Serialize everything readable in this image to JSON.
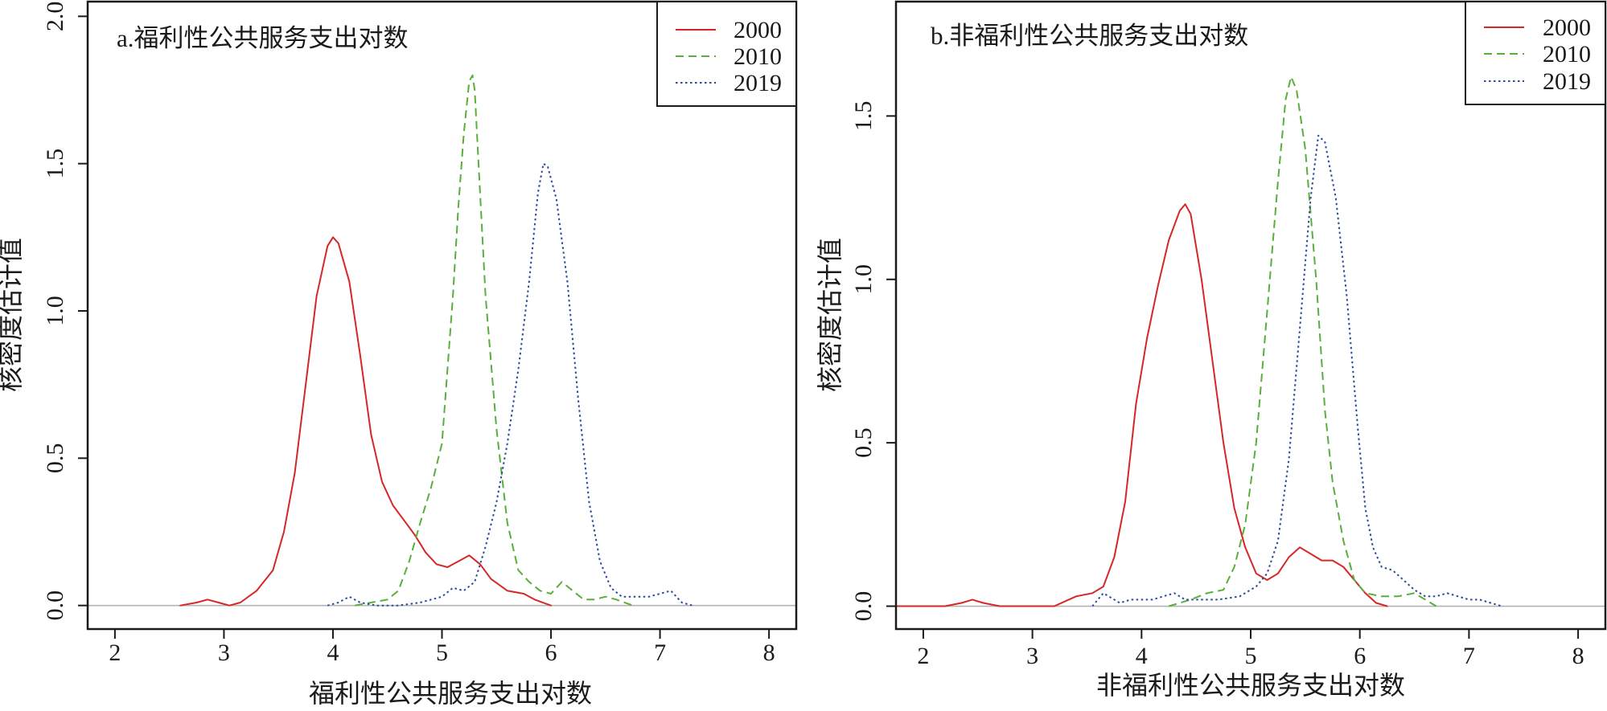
{
  "chart_data": [
    {
      "type": "line",
      "title": "a.福利性公共服务支出对数",
      "xlabel": "福利性公共服务支出对数",
      "ylabel": "核密度估计值",
      "xlim": [
        1.75,
        8.25
      ],
      "ylim": [
        -0.08,
        2.05
      ],
      "x_ticks": [
        "2",
        "3",
        "4",
        "5",
        "6",
        "7",
        "8"
      ],
      "y_ticks": [
        "0.0",
        "0.5",
        "1.0",
        "1.5",
        "2.0"
      ],
      "baseline": 0,
      "legend_position": "top-right",
      "series": [
        {
          "name": "2000",
          "color": "#d62728",
          "dash": "solid",
          "points": [
            [
              2.6,
              0.0
            ],
            [
              2.75,
              0.01
            ],
            [
              2.85,
              0.02
            ],
            [
              2.95,
              0.01
            ],
            [
              3.05,
              0.0
            ],
            [
              3.15,
              0.01
            ],
            [
              3.3,
              0.05
            ],
            [
              3.45,
              0.12
            ],
            [
              3.55,
              0.25
            ],
            [
              3.65,
              0.45
            ],
            [
              3.75,
              0.75
            ],
            [
              3.85,
              1.05
            ],
            [
              3.95,
              1.22
            ],
            [
              4.0,
              1.25
            ],
            [
              4.05,
              1.23
            ],
            [
              4.15,
              1.1
            ],
            [
              4.25,
              0.85
            ],
            [
              4.35,
              0.58
            ],
            [
              4.45,
              0.42
            ],
            [
              4.55,
              0.34
            ],
            [
              4.65,
              0.29
            ],
            [
              4.75,
              0.24
            ],
            [
              4.85,
              0.18
            ],
            [
              4.95,
              0.14
            ],
            [
              5.05,
              0.13
            ],
            [
              5.15,
              0.15
            ],
            [
              5.25,
              0.17
            ],
            [
              5.35,
              0.14
            ],
            [
              5.45,
              0.09
            ],
            [
              5.6,
              0.05
            ],
            [
              5.75,
              0.04
            ],
            [
              5.85,
              0.02
            ],
            [
              6.0,
              0.0
            ]
          ]
        },
        {
          "name": "2010",
          "color": "#5aae3a",
          "dash": "dashed",
          "points": [
            [
              4.2,
              0.0
            ],
            [
              4.35,
              0.01
            ],
            [
              4.5,
              0.02
            ],
            [
              4.6,
              0.05
            ],
            [
              4.7,
              0.15
            ],
            [
              4.8,
              0.28
            ],
            [
              4.9,
              0.4
            ],
            [
              5.0,
              0.55
            ],
            [
              5.05,
              0.8
            ],
            [
              5.1,
              1.05
            ],
            [
              5.15,
              1.35
            ],
            [
              5.2,
              1.6
            ],
            [
              5.25,
              1.78
            ],
            [
              5.28,
              1.8
            ],
            [
              5.3,
              1.75
            ],
            [
              5.35,
              1.4
            ],
            [
              5.4,
              1.05
            ],
            [
              5.5,
              0.6
            ],
            [
              5.6,
              0.28
            ],
            [
              5.7,
              0.12
            ],
            [
              5.8,
              0.08
            ],
            [
              5.9,
              0.05
            ],
            [
              6.0,
              0.04
            ],
            [
              6.1,
              0.08
            ],
            [
              6.2,
              0.05
            ],
            [
              6.3,
              0.02
            ],
            [
              6.4,
              0.02
            ],
            [
              6.5,
              0.03
            ],
            [
              6.6,
              0.02
            ],
            [
              6.75,
              0.0
            ]
          ]
        },
        {
          "name": "2019",
          "color": "#2b4a9b",
          "dash": "dotted",
          "points": [
            [
              3.95,
              0.0
            ],
            [
              4.05,
              0.01
            ],
            [
              4.15,
              0.03
            ],
            [
              4.25,
              0.01
            ],
            [
              4.4,
              0.0
            ],
            [
              4.6,
              0.0
            ],
            [
              4.8,
              0.01
            ],
            [
              5.0,
              0.03
            ],
            [
              5.1,
              0.06
            ],
            [
              5.2,
              0.05
            ],
            [
              5.3,
              0.08
            ],
            [
              5.4,
              0.2
            ],
            [
              5.5,
              0.35
            ],
            [
              5.6,
              0.55
            ],
            [
              5.7,
              0.8
            ],
            [
              5.8,
              1.1
            ],
            [
              5.88,
              1.4
            ],
            [
              5.93,
              1.5
            ],
            [
              5.97,
              1.49
            ],
            [
              6.05,
              1.38
            ],
            [
              6.15,
              1.1
            ],
            [
              6.25,
              0.7
            ],
            [
              6.35,
              0.35
            ],
            [
              6.45,
              0.15
            ],
            [
              6.55,
              0.06
            ],
            [
              6.65,
              0.03
            ],
            [
              6.8,
              0.03
            ],
            [
              6.9,
              0.03
            ],
            [
              7.0,
              0.04
            ],
            [
              7.1,
              0.05
            ],
            [
              7.2,
              0.01
            ],
            [
              7.3,
              0.0
            ]
          ]
        }
      ]
    },
    {
      "type": "line",
      "title": "b.非福利性公共服务支出对数",
      "xlabel": "非福利性公共服务支出对数",
      "ylabel": "核密度估计值",
      "xlim": [
        1.75,
        8.25
      ],
      "ylim": [
        -0.07,
        1.85
      ],
      "x_ticks": [
        "2",
        "3",
        "4",
        "5",
        "6",
        "7",
        "8"
      ],
      "y_ticks": [
        "0.0",
        "0.5",
        "1.0",
        "1.5"
      ],
      "baseline": 0,
      "legend_position": "top-right",
      "series": [
        {
          "name": "2000",
          "color": "#d62728",
          "dash": "solid",
          "points": [
            [
              1.75,
              0.0
            ],
            [
              2.2,
              0.0
            ],
            [
              2.35,
              0.01
            ],
            [
              2.45,
              0.02
            ],
            [
              2.55,
              0.01
            ],
            [
              2.7,
              0.0
            ],
            [
              3.0,
              0.0
            ],
            [
              3.2,
              0.0
            ],
            [
              3.4,
              0.03
            ],
            [
              3.55,
              0.04
            ],
            [
              3.65,
              0.06
            ],
            [
              3.75,
              0.15
            ],
            [
              3.85,
              0.32
            ],
            [
              3.95,
              0.62
            ],
            [
              4.05,
              0.82
            ],
            [
              4.15,
              0.98
            ],
            [
              4.25,
              1.12
            ],
            [
              4.35,
              1.21
            ],
            [
              4.4,
              1.23
            ],
            [
              4.45,
              1.2
            ],
            [
              4.55,
              1.0
            ],
            [
              4.65,
              0.75
            ],
            [
              4.75,
              0.5
            ],
            [
              4.85,
              0.3
            ],
            [
              4.95,
              0.18
            ],
            [
              5.05,
              0.1
            ],
            [
              5.15,
              0.08
            ],
            [
              5.25,
              0.1
            ],
            [
              5.35,
              0.15
            ],
            [
              5.45,
              0.18
            ],
            [
              5.55,
              0.16
            ],
            [
              5.65,
              0.14
            ],
            [
              5.75,
              0.14
            ],
            [
              5.85,
              0.12
            ],
            [
              5.95,
              0.08
            ],
            [
              6.05,
              0.04
            ],
            [
              6.15,
              0.01
            ],
            [
              6.25,
              0.0
            ]
          ]
        },
        {
          "name": "2010",
          "color": "#5aae3a",
          "dash": "dashed",
          "points": [
            [
              4.25,
              0.0
            ],
            [
              4.45,
              0.02
            ],
            [
              4.6,
              0.04
            ],
            [
              4.75,
              0.05
            ],
            [
              4.85,
              0.12
            ],
            [
              4.95,
              0.25
            ],
            [
              5.05,
              0.5
            ],
            [
              5.15,
              0.9
            ],
            [
              5.25,
              1.3
            ],
            [
              5.32,
              1.55
            ],
            [
              5.37,
              1.62
            ],
            [
              5.42,
              1.58
            ],
            [
              5.5,
              1.4
            ],
            [
              5.6,
              1.0
            ],
            [
              5.68,
              0.6
            ],
            [
              5.75,
              0.38
            ],
            [
              5.85,
              0.2
            ],
            [
              5.95,
              0.08
            ],
            [
              6.05,
              0.04
            ],
            [
              6.2,
              0.03
            ],
            [
              6.35,
              0.03
            ],
            [
              6.5,
              0.04
            ],
            [
              6.6,
              0.02
            ],
            [
              6.7,
              0.0
            ]
          ]
        },
        {
          "name": "2019",
          "color": "#2b4a9b",
          "dash": "dotted",
          "points": [
            [
              3.55,
              0.0
            ],
            [
              3.65,
              0.04
            ],
            [
              3.7,
              0.03
            ],
            [
              3.8,
              0.01
            ],
            [
              3.9,
              0.02
            ],
            [
              4.0,
              0.02
            ],
            [
              4.1,
              0.02
            ],
            [
              4.2,
              0.03
            ],
            [
              4.3,
              0.04
            ],
            [
              4.4,
              0.02
            ],
            [
              4.5,
              0.02
            ],
            [
              4.7,
              0.02
            ],
            [
              4.9,
              0.03
            ],
            [
              5.05,
              0.06
            ],
            [
              5.15,
              0.1
            ],
            [
              5.25,
              0.2
            ],
            [
              5.35,
              0.45
            ],
            [
              5.45,
              0.85
            ],
            [
              5.55,
              1.25
            ],
            [
              5.62,
              1.44
            ],
            [
              5.68,
              1.42
            ],
            [
              5.78,
              1.25
            ],
            [
              5.88,
              0.95
            ],
            [
              5.98,
              0.55
            ],
            [
              6.05,
              0.3
            ],
            [
              6.12,
              0.18
            ],
            [
              6.2,
              0.12
            ],
            [
              6.3,
              0.11
            ],
            [
              6.4,
              0.08
            ],
            [
              6.5,
              0.05
            ],
            [
              6.6,
              0.03
            ],
            [
              6.7,
              0.03
            ],
            [
              6.8,
              0.04
            ],
            [
              6.9,
              0.03
            ],
            [
              7.0,
              0.02
            ],
            [
              7.1,
              0.02
            ],
            [
              7.2,
              0.01
            ],
            [
              7.3,
              0.0
            ]
          ]
        }
      ]
    }
  ]
}
